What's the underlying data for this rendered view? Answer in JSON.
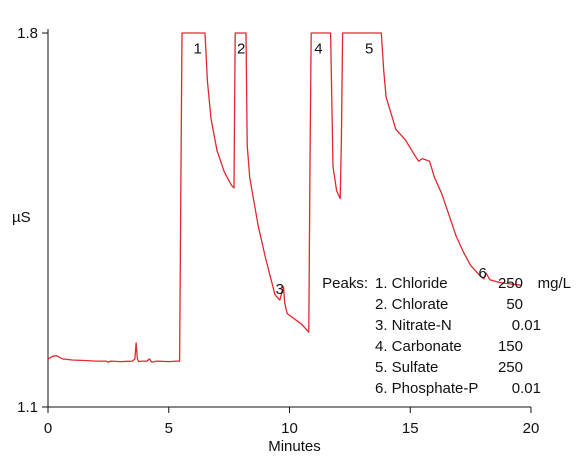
{
  "chart_data": {
    "type": "line",
    "title": "",
    "xlabel": "Minutes",
    "ylabel": "µS",
    "xlim": [
      0,
      20
    ],
    "ylim": [
      1.1,
      1.8
    ],
    "xticks": [
      "0",
      "5",
      "10",
      "15",
      "20"
    ],
    "yticks": [
      "1.8",
      "1.1"
    ],
    "grid": false,
    "line_color": "#e0282e",
    "series": [
      {
        "x": [
          0.0,
          0.2,
          0.35,
          0.6,
          1.0,
          1.5,
          2.0,
          2.4,
          2.5,
          2.6,
          3.0,
          3.5,
          3.6,
          3.65,
          3.7,
          3.75,
          3.9,
          4.1,
          4.2,
          4.3,
          4.5,
          5.0,
          5.35,
          5.45,
          5.5,
          5.55,
          6.5,
          6.6,
          6.75,
          7.0,
          7.3,
          7.6,
          7.7,
          7.75,
          7.8,
          8.2,
          8.25,
          8.35,
          8.7,
          9.0,
          9.4,
          9.6,
          9.75,
          9.8,
          9.9,
          10.5,
          10.8,
          10.85,
          10.9,
          11.7,
          11.8,
          11.95,
          12.1,
          12.15,
          12.2,
          12.25,
          13.8,
          13.9,
          14.0,
          14.4,
          14.8,
          15.2,
          15.35,
          15.5,
          15.8,
          16.0,
          16.3,
          16.6,
          16.9,
          17.2,
          17.5,
          17.9,
          18.05,
          18.15,
          18.3,
          18.7,
          19.2,
          19.6
        ],
        "y": [
          1.19,
          1.195,
          1.196,
          1.19,
          1.188,
          1.187,
          1.186,
          1.186,
          1.184,
          1.186,
          1.185,
          1.186,
          1.19,
          1.22,
          1.19,
          1.185,
          1.186,
          1.186,
          1.19,
          1.184,
          1.186,
          1.185,
          1.186,
          1.186,
          1.5,
          1.8,
          1.8,
          1.71,
          1.64,
          1.58,
          1.54,
          1.515,
          1.51,
          1.8,
          1.8,
          1.8,
          1.59,
          1.53,
          1.44,
          1.38,
          1.31,
          1.3,
          1.325,
          1.295,
          1.275,
          1.255,
          1.24,
          1.56,
          1.8,
          1.8,
          1.55,
          1.505,
          1.49,
          1.6,
          1.8,
          1.8,
          1.8,
          1.73,
          1.68,
          1.62,
          1.6,
          1.57,
          1.56,
          1.565,
          1.56,
          1.53,
          1.5,
          1.46,
          1.42,
          1.39,
          1.365,
          1.345,
          1.34,
          1.35,
          1.338,
          1.333,
          1.33,
          1.328
        ]
      }
    ],
    "peak_labels": [
      {
        "text": "1",
        "x": 6.2,
        "y": 1.78
      },
      {
        "text": "2",
        "x": 8.0,
        "y": 1.78
      },
      {
        "text": "3",
        "x": 9.6,
        "y": 1.33
      },
      {
        "text": "4",
        "x": 11.2,
        "y": 1.78
      },
      {
        "text": "5",
        "x": 13.3,
        "y": 1.78
      },
      {
        "text": "6",
        "x": 18.0,
        "y": 1.36
      }
    ],
    "legend": {
      "heading": "Peaks:",
      "unit": "mg/L",
      "entries": [
        {
          "name": "1. Chloride",
          "value": "250"
        },
        {
          "name": "2. Chlorate",
          "value": "50"
        },
        {
          "name": "3. Nitrate-N",
          "value": "0.01"
        },
        {
          "name": "4. Carbonate",
          "value": "150"
        },
        {
          "name": "5. Sulfate",
          "value": "250"
        },
        {
          "name": "6. Phosphate-P",
          "value": "0.01"
        }
      ]
    }
  }
}
